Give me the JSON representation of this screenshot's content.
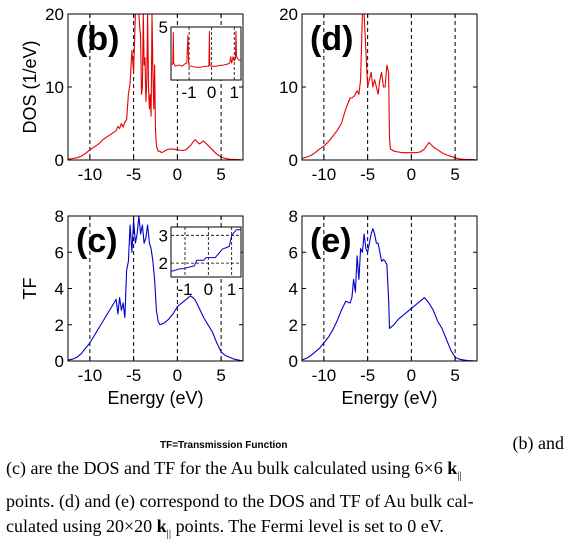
{
  "chart_data": [
    {
      "type": "line",
      "panel_label": "(b)",
      "ylabel": "DOS (1/eV)",
      "xlabel": "",
      "xlim": [
        -12.5,
        7.5
      ],
      "ylim": [
        0,
        20
      ],
      "xticks": [
        -10,
        -5,
        0,
        5
      ],
      "yticks": [
        0,
        10,
        20
      ],
      "vlines": [
        -10,
        -5,
        0,
        5
      ],
      "color": "#e60000",
      "series": [
        {
          "x": [
            -12.5,
            -12,
            -11.5,
            -11,
            -10.5,
            -10,
            -9.5,
            -9,
            -8.5,
            -8,
            -7.5,
            -7,
            -6.8,
            -6.6,
            -6.4,
            -6.2,
            -6,
            -5.8,
            -5.6,
            -5.4,
            -5.2,
            -5,
            -4.8,
            -4.6,
            -4.4,
            -4.3,
            -4.2,
            -4.1,
            -4,
            -3.9,
            -3.8,
            -3.7,
            -3.6,
            -3.5,
            -3.4,
            -3.3,
            -3.2,
            -3.1,
            -3,
            -2.9,
            -2.8,
            -2.7,
            -2.6,
            -2.5,
            -2.4,
            -2.3,
            -2.2,
            -2,
            -1.8,
            -1.5,
            -1.2,
            -1,
            -0.5,
            0,
            0.5,
            1,
            1.5,
            2,
            2.5,
            3,
            3.5,
            4,
            4.5,
            5,
            5.5,
            6,
            7,
            7.5
          ],
          "y": [
            0.1,
            0.2,
            0.3,
            0.5,
            0.9,
            1.4,
            1.8,
            2.2,
            2.8,
            3.2,
            3.6,
            4,
            4.6,
            4.3,
            5,
            4.5,
            5.2,
            5.5,
            9,
            10.5,
            15,
            12,
            20,
            20,
            20,
            18,
            17,
            9,
            10,
            20,
            13,
            14,
            8,
            11,
            20,
            10,
            7,
            9,
            6,
            20,
            12,
            7,
            13,
            4,
            2,
            1.5,
            1.2,
            1.2,
            1,
            1.2,
            1.4,
            1.5,
            1.5,
            1.4,
            1.3,
            1.4,
            2,
            2.8,
            2.2,
            2.6,
            2,
            1.4,
            0.8,
            0.4,
            0.2,
            0.1,
            0.05,
            0
          ]
        }
      ],
      "inset": {
        "xlim": [
          -1.8,
          1.3
        ],
        "ylim": [
          0,
          5
        ],
        "xticks": [
          -1,
          0,
          1
        ],
        "yticks": [
          5
        ],
        "x": [
          -1.8,
          -1.72,
          -1.7,
          -1.68,
          -1.6,
          -1.5,
          -1.4,
          -1.3,
          -1.2,
          -1.1,
          -1.05,
          -1.02,
          -1,
          -0.9,
          -0.7,
          -0.5,
          -0.3,
          -0.12,
          -0.1,
          -0.08,
          0,
          0.2,
          0.4,
          0.5,
          0.7,
          0.8,
          0.85,
          0.88,
          0.9,
          0.95,
          1,
          1.05,
          1.08,
          1.1,
          1.2,
          1.3
        ],
        "y": [
          1.5,
          1.5,
          4.5,
          1.6,
          1.3,
          1.4,
          1.4,
          1.3,
          1.5,
          1.6,
          4.2,
          1.6,
          1.3,
          1.3,
          1.2,
          1.2,
          1.3,
          1.3,
          4.6,
          1.4,
          1.3,
          1.3,
          1.4,
          1.4,
          1.5,
          1.6,
          2.2,
          1.6,
          1.7,
          2.2,
          1.8,
          2,
          4.6,
          2.2,
          1.9,
          1.8
        ]
      }
    },
    {
      "type": "line",
      "panel_label": "(d)",
      "ylabel": "",
      "xlabel": "",
      "xlim": [
        -12.5,
        7.5
      ],
      "ylim": [
        0,
        20
      ],
      "xticks": [
        -10,
        -5,
        0,
        5
      ],
      "yticks": [
        0,
        10,
        20
      ],
      "vlines": [
        -10,
        -5,
        0,
        5
      ],
      "color": "#e60000",
      "series": [
        {
          "x": [
            -12.5,
            -12,
            -11.5,
            -11,
            -10.5,
            -10,
            -9.5,
            -9,
            -8.5,
            -8,
            -7.5,
            -7,
            -6.8,
            -6.5,
            -6.2,
            -6,
            -5.8,
            -5.6,
            -5.4,
            -5.2,
            -5,
            -4.8,
            -4.6,
            -4.4,
            -4.2,
            -4,
            -3.8,
            -3.6,
            -3.4,
            -3.2,
            -3,
            -2.8,
            -2.6,
            -2.5,
            -2.4,
            -2.2,
            -2,
            -1.5,
            -1,
            -0.5,
            0,
            0.5,
            1,
            1.5,
            2,
            2.5,
            3,
            3.5,
            4,
            4.5,
            5,
            5.5,
            6,
            7,
            7.5
          ],
          "y": [
            0.2,
            0.4,
            0.6,
            1,
            1.5,
            1.9,
            2.5,
            3.2,
            4,
            5,
            7,
            8.5,
            8.5,
            8.8,
            9.5,
            9,
            11,
            20,
            20,
            15,
            10,
            11,
            12,
            10,
            11,
            10,
            9,
            11,
            12,
            10,
            10,
            13,
            12,
            3,
            1.5,
            1.4,
            1.2,
            1.1,
            1,
            1,
            1,
            1,
            1.1,
            1.5,
            2.4,
            1.8,
            1.4,
            1,
            0.7,
            0.5,
            0.3,
            0.15,
            0.1,
            0.05,
            0
          ]
        }
      ]
    },
    {
      "type": "line",
      "panel_label": "(c)",
      "ylabel": "TF",
      "xlabel": "Energy (eV)",
      "xlim": [
        -12.5,
        7.5
      ],
      "ylim": [
        0,
        8
      ],
      "xticks": [
        -10,
        -5,
        0,
        5
      ],
      "yticks": [
        0,
        2,
        4,
        6,
        8
      ],
      "vlines": [
        -10,
        -5,
        0,
        5
      ],
      "color": "#0000cc",
      "series": [
        {
          "x": [
            -12.5,
            -12,
            -11.5,
            -11,
            -10.5,
            -10,
            -9.5,
            -9,
            -8.5,
            -8,
            -7.5,
            -7,
            -6.8,
            -6.6,
            -6.4,
            -6.2,
            -6,
            -5.8,
            -5.6,
            -5.4,
            -5.2,
            -5,
            -4.8,
            -4.6,
            -4.4,
            -4.2,
            -4,
            -3.8,
            -3.6,
            -3.4,
            -3.2,
            -3,
            -2.8,
            -2.6,
            -2.4,
            -2.2,
            -2,
            -1.5,
            -1,
            -0.5,
            0,
            0.5,
            1,
            1.5,
            2,
            2.5,
            3,
            3.5,
            4,
            4.5,
            5,
            5.5,
            6,
            6.5,
            7,
            7.5
          ],
          "y": [
            0.05,
            0.1,
            0.2,
            0.4,
            0.7,
            1,
            1.4,
            1.8,
            2.2,
            2.6,
            3,
            3.4,
            2.6,
            3.5,
            2.8,
            3.2,
            2.4,
            5,
            5.5,
            7.5,
            6,
            7.8,
            6.5,
            7,
            8,
            7,
            7.5,
            6.5,
            6.8,
            7.5,
            6.5,
            6.2,
            5.5,
            4.5,
            2.8,
            2.2,
            2,
            2.1,
            2.3,
            2.6,
            3,
            3.2,
            3.4,
            3.6,
            3.4,
            2.9,
            2.4,
            2,
            1.6,
            1,
            0.5,
            0.3,
            0.2,
            0.1,
            0.05,
            0
          ]
        }
      ],
      "inset": {
        "xlim": [
          -1.6,
          1.4
        ],
        "ylim": [
          1.5,
          3.3
        ],
        "xticks": [
          -1,
          0,
          1
        ],
        "yticks": [
          2,
          3
        ],
        "x": [
          -1.6,
          -1.2,
          -1.1,
          -0.6,
          -0.5,
          -0.2,
          -0.1,
          0.3,
          0.5,
          0.6,
          0.9,
          1,
          1.2,
          1.4
        ],
        "y": [
          1.7,
          1.8,
          1.8,
          1.9,
          2.1,
          2.1,
          2.2,
          2.2,
          2.4,
          2.5,
          2.6,
          3,
          3.2,
          3.2
        ]
      }
    },
    {
      "type": "line",
      "panel_label": "(e)",
      "ylabel": "",
      "xlabel": "Energy (eV)",
      "xlim": [
        -12.5,
        7.5
      ],
      "ylim": [
        0,
        8
      ],
      "xticks": [
        -10,
        -5,
        0,
        5
      ],
      "yticks": [
        0,
        2,
        4,
        6,
        8
      ],
      "vlines": [
        -10,
        -5,
        0,
        5
      ],
      "color": "#0000cc",
      "series": [
        {
          "x": [
            -12.5,
            -12,
            -11.5,
            -11,
            -10.5,
            -10,
            -9.5,
            -9,
            -8.5,
            -8,
            -7.5,
            -7,
            -6.8,
            -6.6,
            -6.4,
            -6.2,
            -6,
            -5.8,
            -5.6,
            -5.4,
            -5.2,
            -5,
            -4.8,
            -4.6,
            -4.4,
            -4.2,
            -4,
            -3.8,
            -3.6,
            -3.4,
            -3.2,
            -3,
            -2.8,
            -2.6,
            -2.5,
            -2,
            -1.5,
            -1,
            -0.5,
            0,
            0.5,
            1,
            1.5,
            2,
            2.5,
            3,
            3.5,
            4,
            4.5,
            5,
            5.5,
            6,
            6.5,
            7,
            7.5
          ],
          "y": [
            0.05,
            0.15,
            0.3,
            0.5,
            0.7,
            1,
            1.3,
            1.7,
            2.2,
            2.8,
            3.3,
            3.2,
            3.5,
            4.5,
            3.8,
            5.8,
            4.5,
            6.2,
            6,
            7,
            6.2,
            6,
            6.5,
            7,
            7.3,
            7,
            6.5,
            6.5,
            6,
            5.5,
            5.6,
            5.5,
            5.3,
            3.4,
            1.8,
            2,
            2.3,
            2.5,
            2.7,
            2.9,
            3.1,
            3.3,
            3.5,
            3.2,
            2.8,
            2.2,
            1.8,
            1.2,
            0.6,
            0.2,
            0.1,
            0.05,
            0.02,
            0.01,
            0
          ]
        }
      ]
    }
  ],
  "tf_note": "TF=Transmission Function",
  "caption": {
    "line1": "(b) and",
    "line2_a": "(c) are the DOS and TF for the Au bulk calculated using 6×6 ",
    "line2_k": "k",
    "line2_sub": "||",
    "line3": "points. (d) and (e) correspond to the DOS and TF of Au bulk cal-",
    "line4_a": "culated using 20×20 ",
    "line4_k": "k",
    "line4_sub": "||",
    "line4_b": " points. The Fermi level is set to 0 eV."
  }
}
